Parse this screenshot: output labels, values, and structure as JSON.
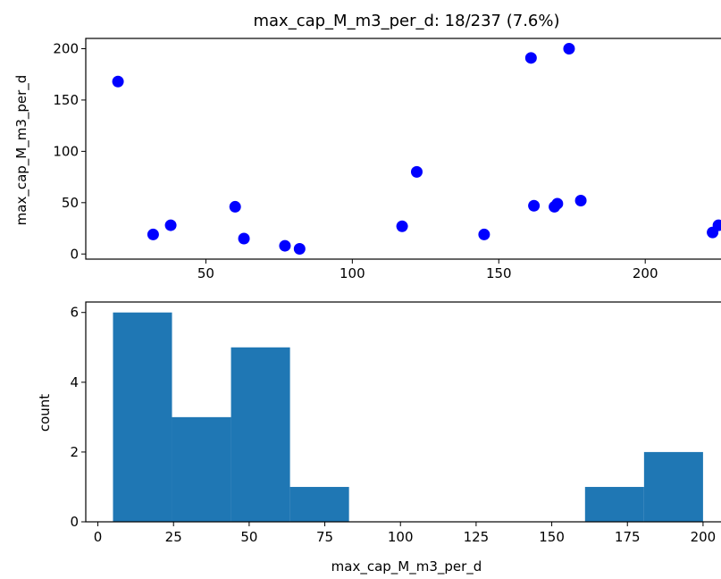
{
  "colors": {
    "points": "#0000ff",
    "bars": "#1f77b4",
    "axis": "#000000"
  },
  "chart_data": [
    {
      "type": "scatter",
      "title": "max_cap_M_m3_per_d: 18/237 (7.6%)",
      "xlabel": "",
      "ylabel": "max_cap_M_m3_per_d",
      "xlim": [
        9,
        228
      ],
      "ylim": [
        -5,
        210
      ],
      "xticks": [
        50,
        100,
        150,
        200
      ],
      "yticks": [
        0,
        50,
        100,
        150,
        200
      ],
      "points": [
        {
          "x": 20,
          "y": 168
        },
        {
          "x": 32,
          "y": 19
        },
        {
          "x": 38,
          "y": 28
        },
        {
          "x": 60,
          "y": 46
        },
        {
          "x": 63,
          "y": 15
        },
        {
          "x": 77,
          "y": 8
        },
        {
          "x": 82,
          "y": 5
        },
        {
          "x": 117,
          "y": 27
        },
        {
          "x": 122,
          "y": 80
        },
        {
          "x": 145,
          "y": 19
        },
        {
          "x": 161,
          "y": 191
        },
        {
          "x": 162,
          "y": 47
        },
        {
          "x": 169,
          "y": 46
        },
        {
          "x": 170,
          "y": 49
        },
        {
          "x": 174,
          "y": 200
        },
        {
          "x": 178,
          "y": 52
        },
        {
          "x": 223,
          "y": 21
        },
        {
          "x": 225,
          "y": 28
        }
      ]
    },
    {
      "type": "bar",
      "subtype": "histogram",
      "title": "",
      "xlabel": "max_cap_M_m3_per_d",
      "ylabel": "count",
      "xlim": [
        -4,
        208
      ],
      "ylim": [
        0,
        6.3
      ],
      "xticks": [
        0,
        25,
        50,
        75,
        100,
        125,
        150,
        175,
        200
      ],
      "yticks": [
        0,
        2,
        4,
        6
      ],
      "bins": [
        {
          "x0": 5,
          "x1": 24.5,
          "count": 6
        },
        {
          "x0": 24.5,
          "x1": 44,
          "count": 3
        },
        {
          "x0": 44,
          "x1": 63.5,
          "count": 5
        },
        {
          "x0": 63.5,
          "x1": 83,
          "count": 1
        },
        {
          "x0": 83,
          "x1": 102.5,
          "count": 0
        },
        {
          "x0": 102.5,
          "x1": 122,
          "count": 0
        },
        {
          "x0": 122,
          "x1": 141.5,
          "count": 0
        },
        {
          "x0": 141.5,
          "x1": 161,
          "count": 0
        },
        {
          "x0": 161,
          "x1": 180.5,
          "count": 1
        },
        {
          "x0": 180.5,
          "x1": 200,
          "count": 2
        }
      ]
    }
  ]
}
